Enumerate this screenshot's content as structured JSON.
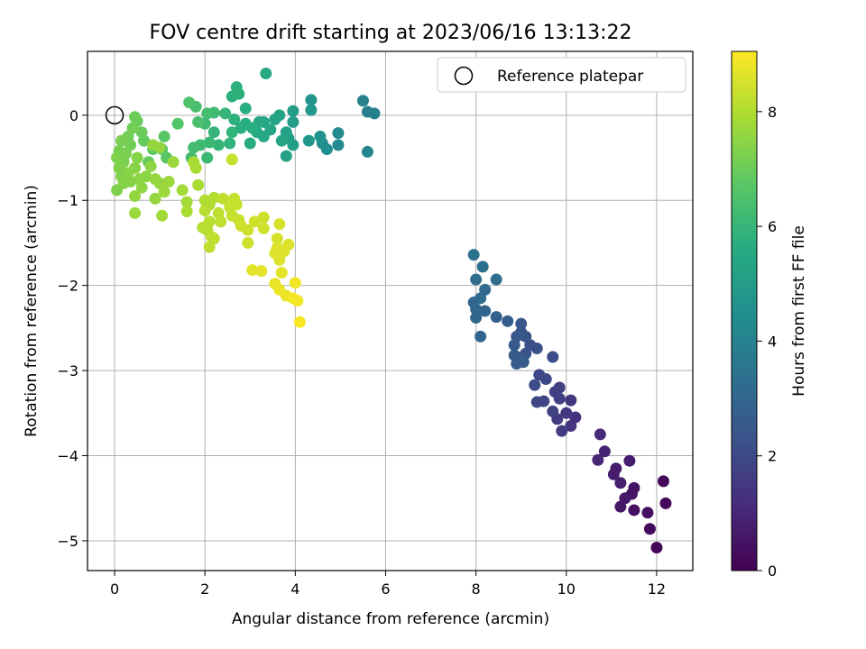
{
  "chart_data": {
    "type": "scatter",
    "title": "FOV centre drift starting at 2023/06/16 13:13:22",
    "xlabel": "Angular distance from reference (arcmin)",
    "ylabel": "Rotation from reference (arcmin)",
    "colorbar_label": "Hours from first FF file",
    "xlim": [
      -0.6,
      12.8
    ],
    "ylim": [
      -5.35,
      0.75
    ],
    "clim": [
      0,
      9.05
    ],
    "colormap": "viridis",
    "grid": true,
    "legend_position": "top-right",
    "xticks": [
      0,
      2,
      4,
      6,
      8,
      10,
      12
    ],
    "yticks": [
      -5,
      -4,
      -3,
      -2,
      -1,
      0
    ],
    "cticks": [
      0,
      2,
      4,
      6,
      8
    ],
    "reference": {
      "label": "Reference platepar",
      "x": 0.0,
      "y": 0.0
    },
    "points": [
      {
        "x": 12.0,
        "y": -5.08,
        "t": 0.1
      },
      {
        "x": 11.85,
        "y": -4.86,
        "t": 0.3
      },
      {
        "x": 12.2,
        "y": -4.56,
        "t": 0.2
      },
      {
        "x": 12.15,
        "y": -4.3,
        "t": 0.2
      },
      {
        "x": 11.8,
        "y": -4.67,
        "t": 0.4
      },
      {
        "x": 11.5,
        "y": -4.64,
        "t": 0.4
      },
      {
        "x": 11.45,
        "y": -4.45,
        "t": 0.5
      },
      {
        "x": 11.3,
        "y": -4.5,
        "t": 0.6
      },
      {
        "x": 11.5,
        "y": -4.38,
        "t": 0.5
      },
      {
        "x": 11.2,
        "y": -4.6,
        "t": 0.6
      },
      {
        "x": 11.4,
        "y": -4.06,
        "t": 0.7
      },
      {
        "x": 11.1,
        "y": -4.15,
        "t": 0.7
      },
      {
        "x": 11.05,
        "y": -4.22,
        "t": 0.7
      },
      {
        "x": 11.2,
        "y": -4.32,
        "t": 0.8
      },
      {
        "x": 10.85,
        "y": -3.95,
        "t": 0.9
      },
      {
        "x": 10.7,
        "y": -4.05,
        "t": 1.0
      },
      {
        "x": 10.75,
        "y": -3.75,
        "t": 1.1
      },
      {
        "x": 10.2,
        "y": -3.55,
        "t": 1.3
      },
      {
        "x": 10.1,
        "y": -3.65,
        "t": 1.4
      },
      {
        "x": 10.1,
        "y": -3.35,
        "t": 1.5
      },
      {
        "x": 10.0,
        "y": -3.5,
        "t": 1.5
      },
      {
        "x": 9.9,
        "y": -3.71,
        "t": 1.6
      },
      {
        "x": 9.8,
        "y": -3.57,
        "t": 1.6
      },
      {
        "x": 9.85,
        "y": -3.33,
        "t": 1.7
      },
      {
        "x": 9.75,
        "y": -3.25,
        "t": 1.7
      },
      {
        "x": 9.85,
        "y": -3.2,
        "t": 1.8
      },
      {
        "x": 9.7,
        "y": -3.48,
        "t": 1.8
      },
      {
        "x": 9.5,
        "y": -3.36,
        "t": 1.9
      },
      {
        "x": 9.35,
        "y": -3.37,
        "t": 1.9
      },
      {
        "x": 9.55,
        "y": -3.1,
        "t": 2.0
      },
      {
        "x": 9.4,
        "y": -3.05,
        "t": 2.0
      },
      {
        "x": 9.3,
        "y": -3.17,
        "t": 2.1
      },
      {
        "x": 9.7,
        "y": -2.84,
        "t": 2.1
      },
      {
        "x": 9.35,
        "y": -2.74,
        "t": 2.2
      },
      {
        "x": 9.2,
        "y": -2.7,
        "t": 2.2
      },
      {
        "x": 9.1,
        "y": -2.8,
        "t": 2.3
      },
      {
        "x": 9.1,
        "y": -2.6,
        "t": 2.3
      },
      {
        "x": 9.0,
        "y": -2.55,
        "t": 2.4
      },
      {
        "x": 9.0,
        "y": -2.45,
        "t": 2.4
      },
      {
        "x": 8.9,
        "y": -2.6,
        "t": 2.5
      },
      {
        "x": 8.85,
        "y": -2.7,
        "t": 2.5
      },
      {
        "x": 8.95,
        "y": -2.85,
        "t": 2.5
      },
      {
        "x": 8.9,
        "y": -2.92,
        "t": 2.6
      },
      {
        "x": 8.85,
        "y": -2.82,
        "t": 2.6
      },
      {
        "x": 9.05,
        "y": -2.9,
        "t": 2.6
      },
      {
        "x": 8.7,
        "y": -2.42,
        "t": 2.7
      },
      {
        "x": 8.45,
        "y": -2.37,
        "t": 2.8
      },
      {
        "x": 8.2,
        "y": -2.3,
        "t": 2.9
      },
      {
        "x": 8.0,
        "y": -2.38,
        "t": 3.0
      },
      {
        "x": 8.0,
        "y": -2.28,
        "t": 3.0
      },
      {
        "x": 7.95,
        "y": -2.2,
        "t": 3.0
      },
      {
        "x": 8.1,
        "y": -2.15,
        "t": 3.1
      },
      {
        "x": 8.2,
        "y": -2.05,
        "t": 3.1
      },
      {
        "x": 8.0,
        "y": -1.93,
        "t": 3.2
      },
      {
        "x": 8.15,
        "y": -1.78,
        "t": 3.3
      },
      {
        "x": 7.95,
        "y": -1.64,
        "t": 3.4
      },
      {
        "x": 8.45,
        "y": -1.93,
        "t": 3.2
      },
      {
        "x": 8.1,
        "y": -2.6,
        "t": 2.9
      },
      {
        "x": 5.75,
        "y": 0.02,
        "t": 3.9
      },
      {
        "x": 5.6,
        "y": 0.04,
        "t": 3.9
      },
      {
        "x": 5.5,
        "y": 0.17,
        "t": 4.0
      },
      {
        "x": 5.6,
        "y": -0.43,
        "t": 4.1
      },
      {
        "x": 4.95,
        "y": -0.35,
        "t": 4.3
      },
      {
        "x": 4.95,
        "y": -0.21,
        "t": 4.3
      },
      {
        "x": 4.7,
        "y": -0.4,
        "t": 4.5
      },
      {
        "x": 4.6,
        "y": -0.33,
        "t": 4.5
      },
      {
        "x": 4.55,
        "y": -0.25,
        "t": 4.6
      },
      {
        "x": 4.35,
        "y": 0.18,
        "t": 4.7
      },
      {
        "x": 4.35,
        "y": 0.06,
        "t": 4.8
      },
      {
        "x": 4.3,
        "y": -0.3,
        "t": 4.8
      },
      {
        "x": 3.95,
        "y": 0.05,
        "t": 5.0
      },
      {
        "x": 3.95,
        "y": -0.08,
        "t": 5.0
      },
      {
        "x": 3.95,
        "y": -0.35,
        "t": 5.1
      },
      {
        "x": 3.85,
        "y": -0.27,
        "t": 5.1
      },
      {
        "x": 3.8,
        "y": -0.2,
        "t": 5.2
      },
      {
        "x": 3.8,
        "y": -0.48,
        "t": 5.2
      },
      {
        "x": 3.7,
        "y": -0.3,
        "t": 5.3
      },
      {
        "x": 3.65,
        "y": 0.0,
        "t": 5.3
      },
      {
        "x": 3.55,
        "y": -0.05,
        "t": 5.3
      },
      {
        "x": 3.45,
        "y": -0.17,
        "t": 5.4
      },
      {
        "x": 3.3,
        "y": -0.25,
        "t": 5.4
      },
      {
        "x": 3.3,
        "y": -0.08,
        "t": 5.4
      },
      {
        "x": 3.35,
        "y": 0.49,
        "t": 5.5
      },
      {
        "x": 3.2,
        "y": -0.08,
        "t": 5.5
      },
      {
        "x": 3.15,
        "y": -0.2,
        "t": 5.5
      },
      {
        "x": 3.05,
        "y": -0.15,
        "t": 5.6
      },
      {
        "x": 3.0,
        "y": -0.33,
        "t": 5.6
      },
      {
        "x": 2.9,
        "y": -0.1,
        "t": 5.7
      },
      {
        "x": 2.9,
        "y": 0.08,
        "t": 5.7
      },
      {
        "x": 2.8,
        "y": -0.15,
        "t": 5.7
      },
      {
        "x": 2.75,
        "y": 0.25,
        "t": 5.8
      },
      {
        "x": 2.7,
        "y": 0.33,
        "t": 5.8
      },
      {
        "x": 2.6,
        "y": 0.22,
        "t": 5.8
      },
      {
        "x": 2.65,
        "y": -0.05,
        "t": 5.8
      },
      {
        "x": 2.6,
        "y": -0.2,
        "t": 5.9
      },
      {
        "x": 2.55,
        "y": -0.33,
        "t": 5.9
      },
      {
        "x": 2.45,
        "y": 0.02,
        "t": 6.0
      },
      {
        "x": 2.3,
        "y": -0.35,
        "t": 6.0
      },
      {
        "x": 2.2,
        "y": -0.2,
        "t": 6.0
      },
      {
        "x": 2.1,
        "y": -0.32,
        "t": 6.1
      },
      {
        "x": 2.05,
        "y": -0.5,
        "t": 6.1
      },
      {
        "x": 2.0,
        "y": -0.1,
        "t": 6.2
      },
      {
        "x": 1.9,
        "y": -0.35,
        "t": 6.2
      },
      {
        "x": 1.75,
        "y": -0.38,
        "t": 6.3
      },
      {
        "x": 1.7,
        "y": -0.5,
        "t": 6.3
      },
      {
        "x": 2.2,
        "y": 0.03,
        "t": 6.2
      },
      {
        "x": 2.05,
        "y": 0.02,
        "t": 6.3
      },
      {
        "x": 1.85,
        "y": -0.08,
        "t": 6.4
      },
      {
        "x": 1.8,
        "y": 0.1,
        "t": 6.4
      },
      {
        "x": 1.65,
        "y": 0.15,
        "t": 6.5
      },
      {
        "x": 1.4,
        "y": -0.1,
        "t": 6.6
      },
      {
        "x": 1.15,
        "y": -0.5,
        "t": 6.7
      },
      {
        "x": 1.1,
        "y": -0.25,
        "t": 6.7
      },
      {
        "x": 1.05,
        "y": -0.4,
        "t": 6.7
      },
      {
        "x": 0.85,
        "y": -0.4,
        "t": 6.8
      },
      {
        "x": 0.75,
        "y": -0.55,
        "t": 6.9
      },
      {
        "x": 0.65,
        "y": -0.3,
        "t": 6.9
      },
      {
        "x": 0.6,
        "y": -0.2,
        "t": 7.0
      },
      {
        "x": 0.5,
        "y": -0.07,
        "t": 7.0
      },
      {
        "x": 0.45,
        "y": -0.02,
        "t": 7.0
      },
      {
        "x": 0.4,
        "y": -0.15,
        "t": 7.1
      },
      {
        "x": 0.35,
        "y": -0.35,
        "t": 7.1
      },
      {
        "x": 0.3,
        "y": -0.25,
        "t": 7.1
      },
      {
        "x": 0.25,
        "y": -0.45,
        "t": 7.2
      },
      {
        "x": 0.2,
        "y": -0.55,
        "t": 7.2
      },
      {
        "x": 0.15,
        "y": -0.3,
        "t": 7.2
      },
      {
        "x": 0.1,
        "y": -0.42,
        "t": 7.2
      },
      {
        "x": 0.05,
        "y": -0.5,
        "t": 7.3
      },
      {
        "x": 0.1,
        "y": -0.62,
        "t": 7.3
      },
      {
        "x": 0.15,
        "y": -0.72,
        "t": 7.3
      },
      {
        "x": 0.2,
        "y": -0.8,
        "t": 7.4
      },
      {
        "x": 0.3,
        "y": -0.68,
        "t": 7.4
      },
      {
        "x": 0.35,
        "y": -0.78,
        "t": 7.4
      },
      {
        "x": 0.45,
        "y": -0.62,
        "t": 7.4
      },
      {
        "x": 0.5,
        "y": -0.5,
        "t": 7.4
      },
      {
        "x": 0.55,
        "y": -0.75,
        "t": 7.5
      },
      {
        "x": 0.6,
        "y": -0.85,
        "t": 7.5
      },
      {
        "x": 0.7,
        "y": -0.72,
        "t": 7.5
      },
      {
        "x": 0.8,
        "y": -0.6,
        "t": 7.5
      },
      {
        "x": 0.9,
        "y": -0.75,
        "t": 7.6
      },
      {
        "x": 1.0,
        "y": -0.8,
        "t": 7.6
      },
      {
        "x": 0.9,
        "y": -0.98,
        "t": 7.6
      },
      {
        "x": 1.1,
        "y": -0.9,
        "t": 7.7
      },
      {
        "x": 1.2,
        "y": -0.78,
        "t": 7.7
      },
      {
        "x": 1.3,
        "y": -0.55,
        "t": 7.7
      },
      {
        "x": 1.0,
        "y": -0.38,
        "t": 7.6
      },
      {
        "x": 0.85,
        "y": -0.35,
        "t": 7.6
      },
      {
        "x": 0.05,
        "y": -0.88,
        "t": 7.3
      },
      {
        "x": 0.45,
        "y": -0.95,
        "t": 7.6
      },
      {
        "x": 0.45,
        "y": -1.15,
        "t": 7.7
      },
      {
        "x": 1.05,
        "y": -1.18,
        "t": 7.8
      },
      {
        "x": 1.5,
        "y": -0.88,
        "t": 7.8
      },
      {
        "x": 1.6,
        "y": -1.02,
        "t": 7.8
      },
      {
        "x": 1.6,
        "y": -1.13,
        "t": 7.9
      },
      {
        "x": 1.8,
        "y": -0.62,
        "t": 7.9
      },
      {
        "x": 1.85,
        "y": -0.82,
        "t": 7.9
      },
      {
        "x": 1.75,
        "y": -0.55,
        "t": 7.9
      },
      {
        "x": 2.0,
        "y": -1.0,
        "t": 8.0
      },
      {
        "x": 2.1,
        "y": -1.05,
        "t": 8.0
      },
      {
        "x": 2.2,
        "y": -0.97,
        "t": 8.0
      },
      {
        "x": 2.0,
        "y": -1.12,
        "t": 8.1
      },
      {
        "x": 2.1,
        "y": -1.25,
        "t": 8.1
      },
      {
        "x": 2.05,
        "y": -1.35,
        "t": 8.1
      },
      {
        "x": 1.95,
        "y": -1.32,
        "t": 8.1
      },
      {
        "x": 2.2,
        "y": -1.45,
        "t": 8.2
      },
      {
        "x": 2.1,
        "y": -1.55,
        "t": 8.2
      },
      {
        "x": 2.15,
        "y": -1.43,
        "t": 8.2
      },
      {
        "x": 2.35,
        "y": -1.25,
        "t": 8.2
      },
      {
        "x": 2.3,
        "y": -1.15,
        "t": 8.2
      },
      {
        "x": 2.4,
        "y": -0.98,
        "t": 8.2
      },
      {
        "x": 2.55,
        "y": -1.08,
        "t": 8.3
      },
      {
        "x": 2.65,
        "y": -0.98,
        "t": 8.3
      },
      {
        "x": 2.7,
        "y": -1.05,
        "t": 8.3
      },
      {
        "x": 2.6,
        "y": -1.18,
        "t": 8.3
      },
      {
        "x": 2.75,
        "y": -1.23,
        "t": 8.3
      },
      {
        "x": 2.8,
        "y": -1.3,
        "t": 8.4
      },
      {
        "x": 2.95,
        "y": -1.35,
        "t": 8.4
      },
      {
        "x": 3.1,
        "y": -1.25,
        "t": 8.4
      },
      {
        "x": 3.3,
        "y": -1.2,
        "t": 8.4
      },
      {
        "x": 3.3,
        "y": -1.33,
        "t": 8.4
      },
      {
        "x": 2.95,
        "y": -1.5,
        "t": 8.4
      },
      {
        "x": 2.6,
        "y": -0.52,
        "t": 8.3
      },
      {
        "x": 3.65,
        "y": -1.28,
        "t": 8.5
      },
      {
        "x": 3.6,
        "y": -1.45,
        "t": 8.5
      },
      {
        "x": 3.6,
        "y": -1.56,
        "t": 8.6
      },
      {
        "x": 3.55,
        "y": -1.62,
        "t": 8.6
      },
      {
        "x": 3.65,
        "y": -1.7,
        "t": 8.6
      },
      {
        "x": 3.75,
        "y": -1.6,
        "t": 8.6
      },
      {
        "x": 3.85,
        "y": -1.52,
        "t": 8.6
      },
      {
        "x": 3.05,
        "y": -1.82,
        "t": 8.7
      },
      {
        "x": 3.25,
        "y": -1.83,
        "t": 8.7
      },
      {
        "x": 3.55,
        "y": -1.98,
        "t": 8.8
      },
      {
        "x": 3.65,
        "y": -2.05,
        "t": 8.8
      },
      {
        "x": 3.8,
        "y": -2.12,
        "t": 8.8
      },
      {
        "x": 3.95,
        "y": -2.15,
        "t": 8.9
      },
      {
        "x": 4.05,
        "y": -2.18,
        "t": 8.9
      },
      {
        "x": 4.0,
        "y": -1.97,
        "t": 8.9
      },
      {
        "x": 4.1,
        "y": -2.43,
        "t": 9.0
      },
      {
        "x": 3.7,
        "y": -1.85,
        "t": 8.7
      }
    ]
  }
}
